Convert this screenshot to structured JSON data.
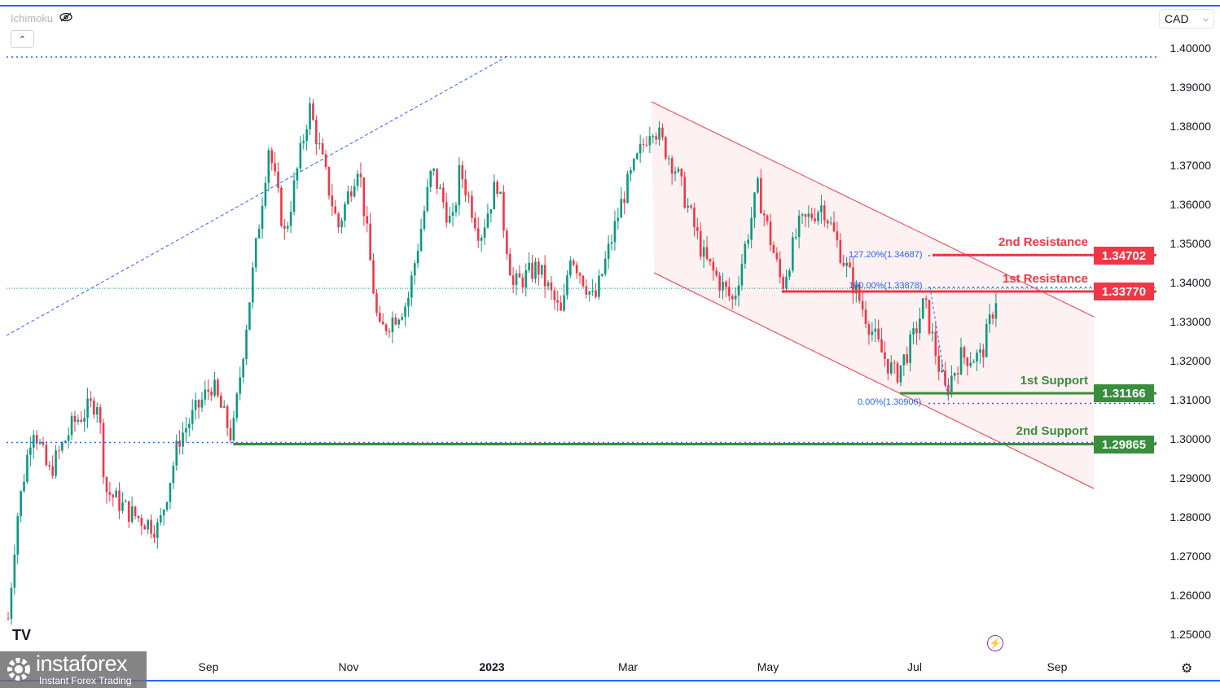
{
  "toolbar": {
    "indicator_label": "Ichimoku",
    "hide_icon": "eye-off-icon",
    "collapse_icon": "chevron-up-icon",
    "currency": "CAD"
  },
  "watermark": {
    "brand": "instaforex",
    "tagline": "Instant Forex Trading"
  },
  "colors": {
    "up": "#089981",
    "down": "#f23645",
    "resistance": "#f23645",
    "support": "#388e3c",
    "fib": "#2962ff",
    "channel_fill": "#fdeeee"
  },
  "chart_data": {
    "type": "candlestick",
    "symbol_quote": "CAD",
    "x_unit": "months since Sep 2022",
    "xticks": [
      "Sep",
      "Nov",
      "2023",
      "Mar",
      "May",
      "Jul",
      "Sep"
    ],
    "yticks": [
      "1.40000",
      "1.39000",
      "1.38000",
      "1.37000",
      "1.36000",
      "1.35000",
      "1.34000",
      "1.33000",
      "1.32000",
      "1.31000",
      "1.30000",
      "1.29000",
      "1.28000",
      "1.27000",
      "1.26000",
      "1.25000"
    ],
    "ylim": [
      1.25,
      1.4
    ],
    "approx_close_path": [
      [
        -2.86,
        1.254
      ],
      [
        -2.74,
        1.279
      ],
      [
        -2.51,
        1.304
      ],
      [
        -2.28,
        1.291
      ],
      [
        -1.93,
        1.304
      ],
      [
        -1.58,
        1.31
      ],
      [
        -1.47,
        1.287
      ],
      [
        -1.12,
        1.281
      ],
      [
        -0.71,
        1.277
      ],
      [
        -0.42,
        1.3
      ],
      [
        0.05,
        1.314
      ],
      [
        0.34,
        1.3
      ],
      [
        0.51,
        1.325
      ],
      [
        0.86,
        1.375
      ],
      [
        1.09,
        1.352
      ],
      [
        1.44,
        1.385
      ],
      [
        1.85,
        1.354
      ],
      [
        2.14,
        1.371
      ],
      [
        2.43,
        1.327
      ],
      [
        2.84,
        1.335
      ],
      [
        3.19,
        1.369
      ],
      [
        3.48,
        1.354
      ],
      [
        3.59,
        1.369
      ],
      [
        3.88,
        1.352
      ],
      [
        4.12,
        1.366
      ],
      [
        4.35,
        1.339
      ],
      [
        4.7,
        1.344
      ],
      [
        5.05,
        1.331
      ],
      [
        5.16,
        1.348
      ],
      [
        5.51,
        1.335
      ],
      [
        5.92,
        1.362
      ],
      [
        6.33,
        1.381
      ],
      [
        6.67,
        1.369
      ],
      [
        7.08,
        1.346
      ],
      [
        7.49,
        1.335
      ],
      [
        7.84,
        1.364
      ],
      [
        8.19,
        1.339
      ],
      [
        8.42,
        1.354
      ],
      [
        8.77,
        1.36
      ],
      [
        9.06,
        1.346
      ],
      [
        9.35,
        1.333
      ],
      [
        9.58,
        1.323
      ],
      [
        9.81,
        1.316
      ],
      [
        10.05,
        1.325
      ],
      [
        10.22,
        1.335
      ],
      [
        10.51,
        1.312
      ],
      [
        10.74,
        1.321
      ],
      [
        11.03,
        1.321
      ],
      [
        11.27,
        1.338
      ]
    ],
    "levels": [
      {
        "label": "2nd Resistance",
        "price": "1.34702",
        "kind": "resistance"
      },
      {
        "label": "1st Resistance",
        "price": "1.33770",
        "kind": "resistance"
      },
      {
        "label": "1st Support",
        "price": "1.31166",
        "kind": "support"
      },
      {
        "label": "2nd Support",
        "price": "1.29865",
        "kind": "support"
      }
    ],
    "fibonacci": [
      {
        "label": "127.20%(1.34687)",
        "price": 1.34687
      },
      {
        "label": "100.00%(1.33878)",
        "price": 1.33878
      },
      {
        "label": "0.00%(1.30906)",
        "price": 1.30906
      }
    ],
    "current_price": 1.3381,
    "top_dotted_level": 1.3977
  }
}
